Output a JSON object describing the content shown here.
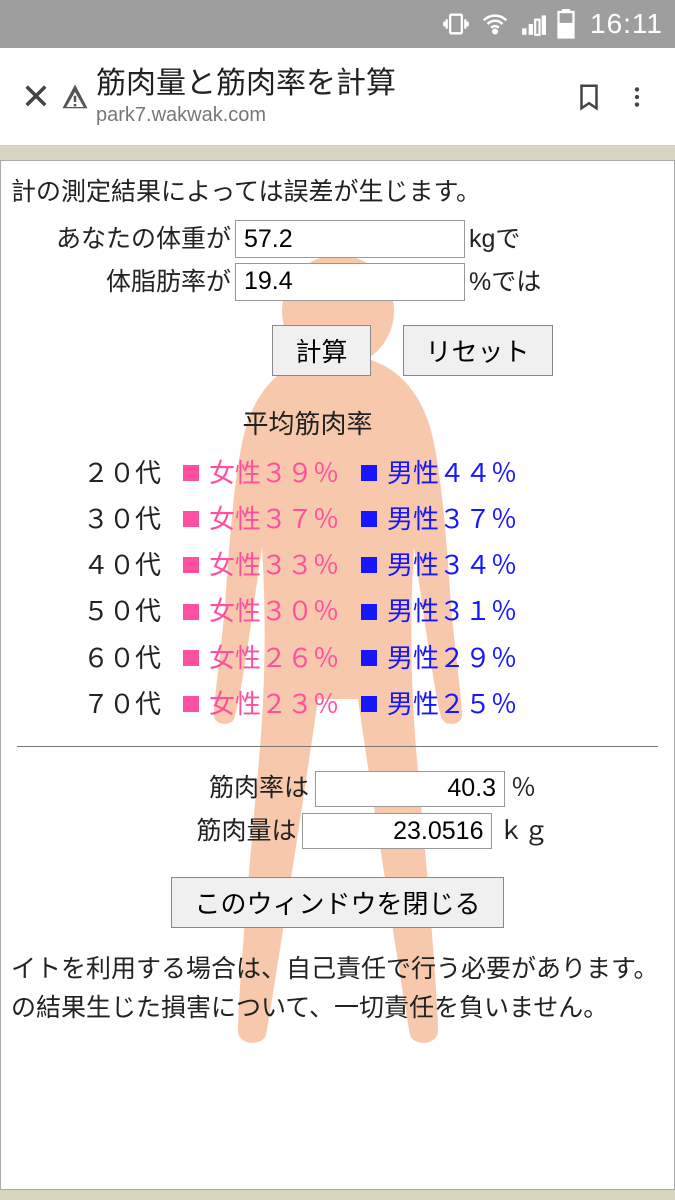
{
  "status": {
    "time": "16:11"
  },
  "browser": {
    "title": "筋肉量と筋肉率を計算",
    "url": "park7.wakwak.com"
  },
  "note": "計の測定結果によっては誤差が生じます。",
  "inputs": {
    "weight_label": "あなたの体重が",
    "weight_value": "57.2",
    "weight_unit": "kgで",
    "fat_label": "体脂肪率が",
    "fat_value": "19.4",
    "fat_unit": "%では"
  },
  "buttons": {
    "calc": "計算",
    "reset": "リセット",
    "close_window": "このウィンドウを閉じる"
  },
  "rate_table": {
    "header": "平均筋肉率",
    "female_color": "#ff4fa0",
    "male_color": "#1616ff",
    "rows": [
      {
        "age": "２０代",
        "f": "女性３９％",
        "m": "男性４４％"
      },
      {
        "age": "３０代",
        "f": "女性３７％",
        "m": "男性３７％"
      },
      {
        "age": "４０代",
        "f": "女性３３％",
        "m": "男性３４％"
      },
      {
        "age": "５０代",
        "f": "女性３０％",
        "m": "男性３１％"
      },
      {
        "age": "６０代",
        "f": "女性２６％",
        "m": "男性２９％"
      },
      {
        "age": "７０代",
        "f": "女性２３％",
        "m": "男性２５％"
      }
    ]
  },
  "results": {
    "rate_label": "筋肉率は",
    "rate_value": "40.3",
    "rate_unit": "％",
    "mass_label": "筋肉量は",
    "mass_value": "23.0516",
    "mass_unit": "ｋｇ"
  },
  "disclaimer1": "イトを利用する場合は、自己責任で行う必要があります。",
  "disclaimer2": "の結果生じた損害について、一切責任を負いません。",
  "colors": {
    "body_fill": "#f7c3a3",
    "page_bg": "#d8d6c1"
  }
}
